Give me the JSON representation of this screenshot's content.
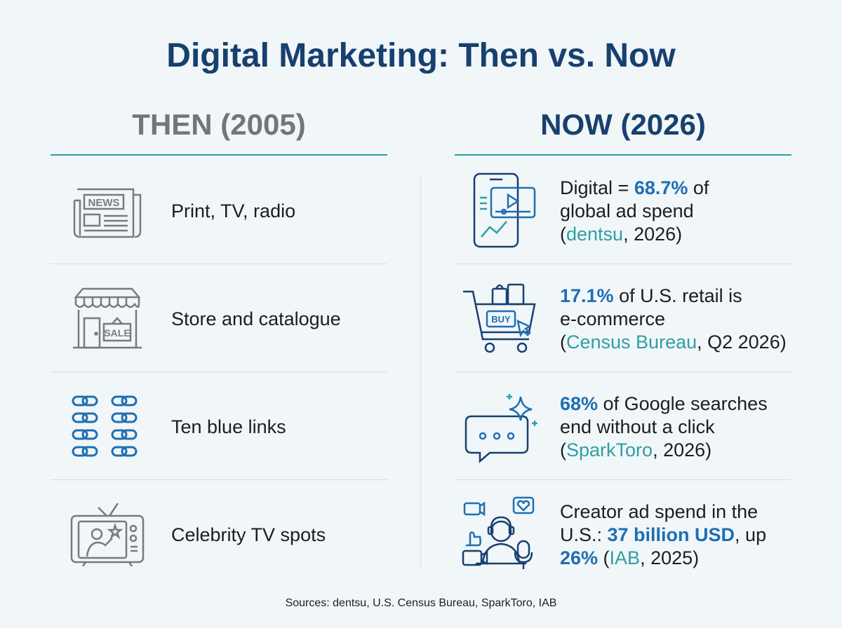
{
  "title": "Digital Marketing: Then vs. Now",
  "then": {
    "heading": "THEN (2005)",
    "items": [
      {
        "label": "Print, TV, radio",
        "icon": "newspaper-icon",
        "icon_text": "NEWS"
      },
      {
        "label": "Store and catalogue",
        "icon": "storefront-icon",
        "icon_text": "SALE"
      },
      {
        "label": "Ten blue links",
        "icon": "chain-links-icon"
      },
      {
        "label": "Celebrity TV spots",
        "icon": "television-icon"
      }
    ]
  },
  "now": {
    "heading": "NOW (2026)",
    "items": [
      {
        "icon": "smartphone-video-icon",
        "line1_pre": "Digital = ",
        "line1_stat": "68.7%",
        "line1_post": " of",
        "line2": "global ad spend",
        "line3_open": "(",
        "source": "dentsu",
        "line3_post": ", 2026)"
      },
      {
        "icon": "shopping-cart-icon",
        "icon_text": "BUY",
        "line1_stat": "17.1%",
        "line1_post": " of U.S. retail is",
        "line2": "e-commerce",
        "line3_open": "(",
        "source": "Census Bureau",
        "line3_post": ", Q2 2026)"
      },
      {
        "icon": "chat-bubble-sparkle-icon",
        "line1_stat": "68%",
        "line1_post": " of Google searches",
        "line2": "end without a click",
        "line3_open": "(",
        "source": "SparkToro",
        "line3_post": ", 2026)"
      },
      {
        "icon": "creator-icon",
        "line1": "Creator ad spend in the",
        "line2_pre": "U.S.: ",
        "line2_stat": "37 billion USD",
        "line2_post": ", up",
        "line3_stat": "26%",
        "line3_open": " (",
        "source": "IAB",
        "line3_post": ", 2025)"
      }
    ]
  },
  "footer": "Sources: dentsu, U.S. Census Bureau, SparkToro, IAB",
  "colors": {
    "background": "#f1f6f9",
    "title": "#17406e",
    "then_heading": "#757575",
    "accent_teal": "#2f9fa3",
    "highlight_blue": "#1f6fb2",
    "icon_navy": "#17406e",
    "icon_gray": "#7a7a7a"
  }
}
